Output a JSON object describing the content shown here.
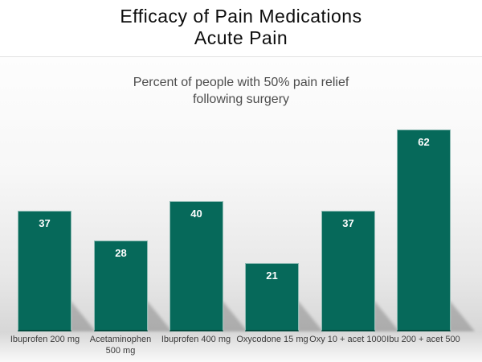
{
  "header": {
    "title_line1": "Efficacy of Pain Medications",
    "title_line2": "Acute Pain",
    "subtitle_line1": "Percent of people with 50% pain relief",
    "subtitle_line2": "following surgery"
  },
  "chart_data": {
    "type": "bar",
    "title": "Efficacy of Pain Medications - Acute Pain",
    "subtitle": "Percent of people with 50% pain relief following surgery",
    "categories": [
      "Ibuprofen 200 mg",
      "Acetaminophen 500 mg",
      "Ibuprofen 400 mg",
      "Oxycodone 15 mg",
      "Oxy 10 + acet 1000",
      "Ibu 200 + acet 500"
    ],
    "values": [
      37,
      28,
      40,
      21,
      37,
      62
    ],
    "xlabel": "",
    "ylabel": "",
    "ylim": [
      0,
      65
    ],
    "grid": false,
    "legend": false,
    "data_labels": "inside-top",
    "bar_color": "#06695a",
    "value_label_color": "#ffffff",
    "category_label_color": "#3c3c3c",
    "shadow_color": "#6c6c6c",
    "panel_gradient_top": "#fdfdfd",
    "panel_gradient_bottom": "#d7d7d7"
  }
}
